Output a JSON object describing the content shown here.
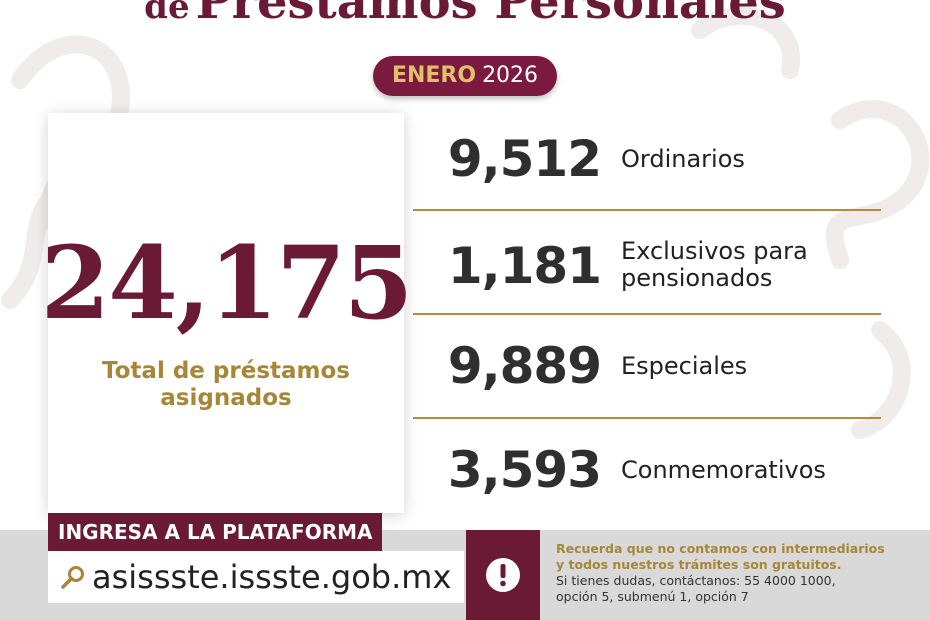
{
  "header": {
    "title_prefix": "de",
    "title_main": "Préstamos Personales",
    "month": "ENERO",
    "year": "2026"
  },
  "total": {
    "value": "24,175",
    "label_line1": "Total de préstamos",
    "label_line2": "asignados"
  },
  "stats": [
    {
      "value": "9,512",
      "label_line1": "Ordinarios",
      "label_line2": ""
    },
    {
      "value": "1,181",
      "label_line1": "Exclusivos para",
      "label_line2": "pensionados"
    },
    {
      "value": "9,889",
      "label_line1": "Especiales",
      "label_line2": ""
    },
    {
      "value": "3,593",
      "label_line1": "Conmemorativos",
      "label_line2": ""
    }
  ],
  "platform": {
    "label": "INGRESA A LA PLATAFORMA",
    "url": "asissste.issste.gob.mx",
    "icon": "search-icon"
  },
  "notice": {
    "warning_line1": "Recuerda que no contamos con intermediarios",
    "warning_line2": "y todos nuestros trámites son gratuitos.",
    "contact_line1": "Si tienes dudas, contáctanos: 55 4000 1000,",
    "contact_line2": "opción 5, submenú 1, opción 7",
    "icon": "exclamation-icon"
  },
  "colors": {
    "brand_maroon": "#6b1a36",
    "gold": "#a78638",
    "band_gray": "#d9d9d9"
  }
}
